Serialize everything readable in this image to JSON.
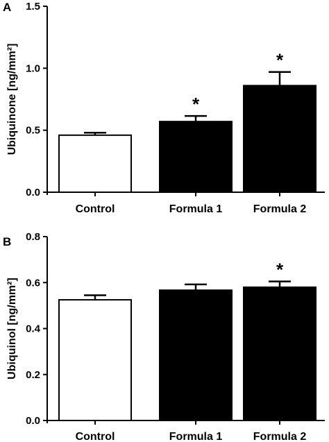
{
  "chart_data": [
    {
      "panel": "A",
      "type": "bar",
      "categories": [
        "Control",
        "Formula 1",
        "Formula 2"
      ],
      "values": [
        0.46,
        0.57,
        0.86
      ],
      "errors": [
        0.02,
        0.045,
        0.11
      ],
      "bar_fills": [
        "#ffffff",
        "#000000",
        "#000000"
      ],
      "significance": [
        "",
        "*",
        "*"
      ],
      "ylabel": "Ubiquinone [ng/mm²]",
      "ylim": [
        0,
        1.5
      ],
      "yticks": [
        "0.0",
        "0.5",
        "1.0",
        "1.5"
      ],
      "grid": false
    },
    {
      "panel": "B",
      "type": "bar",
      "categories": [
        "Control",
        "Formula 1",
        "Formula 2"
      ],
      "values": [
        0.525,
        0.567,
        0.58
      ],
      "errors": [
        0.02,
        0.025,
        0.025
      ],
      "bar_fills": [
        "#ffffff",
        "#000000",
        "#000000"
      ],
      "significance": [
        "",
        "",
        "*"
      ],
      "ylabel": "Ubiquinol [ng/mm²]",
      "ylim": [
        0,
        0.8
      ],
      "yticks": [
        "0.0",
        "0.2",
        "0.4",
        "0.6",
        "0.8"
      ],
      "grid": false
    }
  ]
}
